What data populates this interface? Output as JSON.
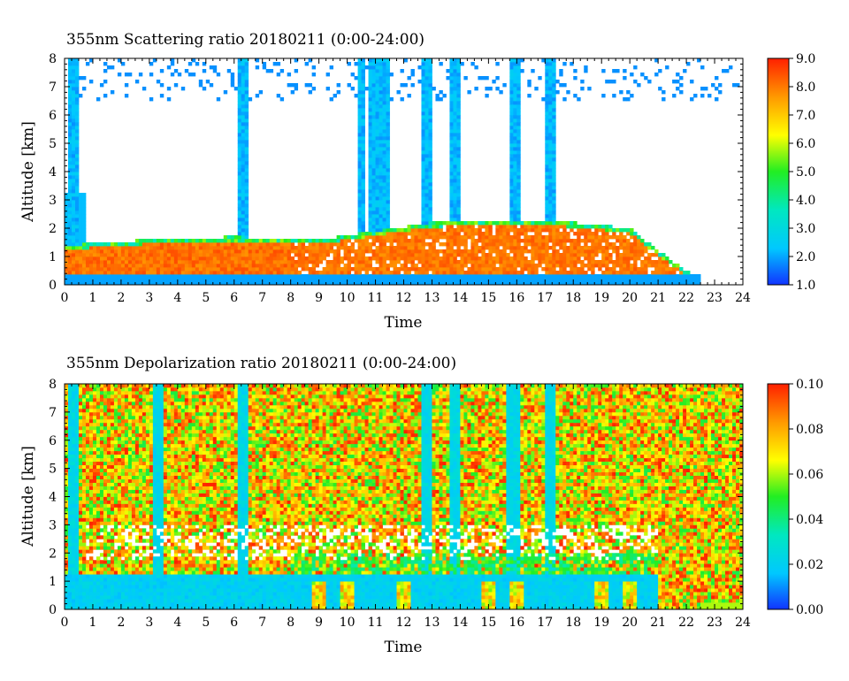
{
  "chart_data": [
    {
      "type": "heatmap",
      "title": "355nm Scattering ratio  20180211 (0:00-24:00)",
      "xlabel": "Time",
      "ylabel": "Altitude [km]",
      "xlim": [
        0,
        24
      ],
      "ylim": [
        0,
        8
      ],
      "xticks": [
        "0",
        "1",
        "2",
        "3",
        "4",
        "5",
        "6",
        "7",
        "8",
        "9",
        "10",
        "11",
        "12",
        "13",
        "14",
        "15",
        "16",
        "17",
        "18",
        "19",
        "20",
        "21",
        "22",
        "23",
        "24"
      ],
      "yticks": [
        "0",
        "1",
        "2",
        "3",
        "4",
        "5",
        "6",
        "7",
        "8"
      ],
      "colorbar": {
        "range": [
          1.0,
          9.0
        ],
        "ticks": [
          "1.0",
          "2.0",
          "3.0",
          "4.0",
          "5.0",
          "6.0",
          "7.0",
          "8.0",
          "9.0"
        ],
        "colormap": [
          "#1133ff",
          "#00c8ff",
          "#00e8c0",
          "#22ee22",
          "#ffff00",
          "#ff9900",
          "#ff2000"
        ]
      },
      "features": {
        "low_layer_top_km": [
          [
            0,
            1.4
          ],
          [
            3,
            1.6
          ],
          [
            6,
            1.7
          ],
          [
            9,
            1.6
          ],
          [
            11,
            1.9
          ],
          [
            13,
            2.2
          ],
          [
            16,
            2.3
          ],
          [
            18,
            2.2
          ],
          [
            20,
            2.0
          ],
          [
            21,
            1.2
          ],
          [
            22,
            0.5
          ],
          [
            22.5,
            0.1
          ]
        ],
        "boundary_layer_peak_value": 8.5,
        "cloud_columns_time_h": [
          0.3,
          6.3,
          10.5,
          10.9,
          11.3,
          12.8,
          13.8,
          15.9,
          17.2
        ]
      }
    },
    {
      "type": "heatmap",
      "title": "355nm Depolarization ratio  20180211 (0:00-24:00)",
      "xlabel": "Time",
      "ylabel": "Altitude [km]",
      "xlim": [
        0,
        24
      ],
      "ylim": [
        0,
        8
      ],
      "xticks": [
        "0",
        "1",
        "2",
        "3",
        "4",
        "5",
        "6",
        "7",
        "8",
        "9",
        "10",
        "11",
        "12",
        "13",
        "14",
        "15",
        "16",
        "17",
        "18",
        "19",
        "20",
        "21",
        "22",
        "23",
        "24"
      ],
      "yticks": [
        "0",
        "1",
        "2",
        "3",
        "4",
        "5",
        "6",
        "7",
        "8"
      ],
      "colorbar": {
        "range": [
          0.0,
          0.1
        ],
        "ticks": [
          "0.00",
          "0.02",
          "0.04",
          "0.06",
          "0.08",
          "0.10"
        ],
        "colormap": [
          "#1133ff",
          "#00c8ff",
          "#00e8c0",
          "#22ee22",
          "#ffff00",
          "#ff9900",
          "#ff2000"
        ]
      },
      "features": {
        "boundary_layer_value": 0.015,
        "free_troposphere_value": 0.09,
        "high_depol_patches_time_h": [
          9,
          10,
          12,
          15,
          16,
          19,
          20
        ]
      }
    }
  ]
}
